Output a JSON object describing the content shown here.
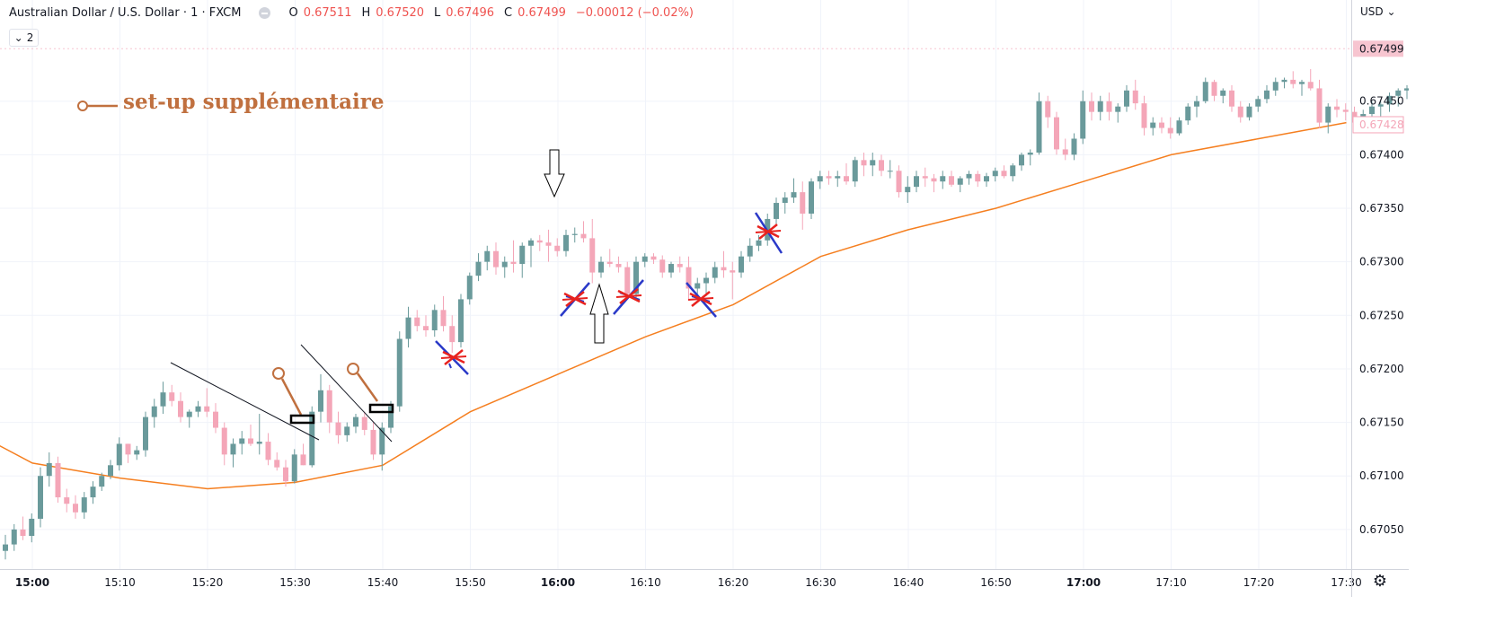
{
  "legend": {
    "symbol": "Australian Dollar / U.S. Dollar · 1 · FXCM",
    "o_label": "O",
    "o_value": "0.67511",
    "h_label": "H",
    "h_value": "0.67520",
    "l_label": "L",
    "l_value": "0.67496",
    "c_label": "C",
    "c_value": "0.67499",
    "change": "−0.00012 (−0.02%)"
  },
  "collapse_button": {
    "chevron": "⌄",
    "count": "2"
  },
  "currency": "USD",
  "currency_chevron": "⌄",
  "settings_icon": "gear-icon",
  "colors": {
    "up": "#6a9a9b",
    "down": "#f4a6b8",
    "ma": "#f57f20",
    "price_tag_bg": "#f7c5d0",
    "ma_tag": "#f4a6b8",
    "annotation": "#c0703f"
  },
  "annotation_text": "set-up supplémentaire",
  "chart_data": {
    "type": "candlestick",
    "title": "Australian Dollar / U.S. Dollar · 1 · FXCM",
    "interval_minutes": 1,
    "x_ticks": [
      "15:00",
      "15:10",
      "15:20",
      "15:30",
      "15:40",
      "15:50",
      "16:00",
      "16:10",
      "16:20",
      "16:30",
      "16:40",
      "16:50",
      "17:00",
      "17:10",
      "17:20",
      "17:30"
    ],
    "bold_x_ticks": [
      "15:00",
      "16:00",
      "17:00"
    ],
    "y_ticks": [
      "0.67050",
      "0.67100",
      "0.67150",
      "0.67200",
      "0.67250",
      "0.67300",
      "0.67350",
      "0.67400",
      "0.67450"
    ],
    "ylim": [
      0.67013,
      0.67516
    ],
    "last_price": "0.67499",
    "ma_value": "0.67428",
    "grid": true,
    "candles": [
      [
        0.6703,
        0.67045,
        0.67022,
        0.67036
      ],
      [
        0.67036,
        0.67055,
        0.6703,
        0.6705
      ],
      [
        0.6705,
        0.67062,
        0.6704,
        0.67044
      ],
      [
        0.67044,
        0.67065,
        0.67038,
        0.6706
      ],
      [
        0.6706,
        0.67108,
        0.67052,
        0.671
      ],
      [
        0.671,
        0.67122,
        0.6709,
        0.67112
      ],
      [
        0.67112,
        0.67118,
        0.67075,
        0.6708
      ],
      [
        0.6708,
        0.67088,
        0.67066,
        0.67074
      ],
      [
        0.67074,
        0.67082,
        0.6706,
        0.67066
      ],
      [
        0.67066,
        0.67085,
        0.6706,
        0.6708
      ],
      [
        0.6708,
        0.67095,
        0.67074,
        0.6709
      ],
      [
        0.6709,
        0.67103,
        0.67086,
        0.671
      ],
      [
        0.671,
        0.67115,
        0.67097,
        0.6711
      ],
      [
        0.6711,
        0.67136,
        0.67105,
        0.6713
      ],
      [
        0.6713,
        0.6713,
        0.67112,
        0.6712
      ],
      [
        0.6712,
        0.67128,
        0.67115,
        0.67124
      ],
      [
        0.67124,
        0.6716,
        0.67118,
        0.67155
      ],
      [
        0.67155,
        0.67172,
        0.67145,
        0.67165
      ],
      [
        0.67165,
        0.67188,
        0.67158,
        0.67178
      ],
      [
        0.67178,
        0.67185,
        0.67165,
        0.6717
      ],
      [
        0.6717,
        0.67178,
        0.6715,
        0.67155
      ],
      [
        0.67155,
        0.67162,
        0.67145,
        0.6716
      ],
      [
        0.6716,
        0.6717,
        0.67155,
        0.67165
      ],
      [
        0.67165,
        0.67182,
        0.67155,
        0.6716
      ],
      [
        0.6716,
        0.67168,
        0.6714,
        0.67145
      ],
      [
        0.67145,
        0.6715,
        0.6711,
        0.6712
      ],
      [
        0.6712,
        0.67135,
        0.67108,
        0.6713
      ],
      [
        0.6713,
        0.67142,
        0.6712,
        0.67135
      ],
      [
        0.67135,
        0.67148,
        0.67128,
        0.6713
      ],
      [
        0.6713,
        0.67158,
        0.6712,
        0.67132
      ],
      [
        0.67132,
        0.6714,
        0.6711,
        0.67115
      ],
      [
        0.67115,
        0.67122,
        0.67105,
        0.67108
      ],
      [
        0.67108,
        0.67115,
        0.6709,
        0.67095
      ],
      [
        0.67095,
        0.67125,
        0.67093,
        0.6712
      ],
      [
        0.6712,
        0.6713,
        0.6711,
        0.6711
      ],
      [
        0.6711,
        0.67165,
        0.67108,
        0.6716
      ],
      [
        0.6716,
        0.67195,
        0.6715,
        0.6718
      ],
      [
        0.6718,
        0.67185,
        0.6714,
        0.6715
      ],
      [
        0.6715,
        0.6716,
        0.6713,
        0.67138
      ],
      [
        0.67138,
        0.6715,
        0.67132,
        0.67146
      ],
      [
        0.67146,
        0.67158,
        0.6714,
        0.67155
      ],
      [
        0.67155,
        0.6716,
        0.67138,
        0.67143
      ],
      [
        0.67143,
        0.6715,
        0.67115,
        0.6712
      ],
      [
        0.6712,
        0.6715,
        0.67105,
        0.67145
      ],
      [
        0.67145,
        0.6717,
        0.6714,
        0.67165
      ],
      [
        0.67165,
        0.67235,
        0.6716,
        0.67228
      ],
      [
        0.67228,
        0.67258,
        0.6722,
        0.67248
      ],
      [
        0.67248,
        0.67255,
        0.67235,
        0.6724
      ],
      [
        0.6724,
        0.6725,
        0.6723,
        0.67236
      ],
      [
        0.67236,
        0.6726,
        0.6723,
        0.67255
      ],
      [
        0.67255,
        0.67268,
        0.67235,
        0.6724
      ],
      [
        0.6724,
        0.6725,
        0.67215,
        0.67225
      ],
      [
        0.67225,
        0.6727,
        0.6722,
        0.67265
      ],
      [
        0.67265,
        0.6729,
        0.6726,
        0.67287
      ],
      [
        0.67287,
        0.67308,
        0.67282,
        0.673
      ],
      [
        0.673,
        0.67315,
        0.67292,
        0.6731
      ],
      [
        0.6731,
        0.67318,
        0.67288,
        0.67295
      ],
      [
        0.67295,
        0.67305,
        0.67285,
        0.673
      ],
      [
        0.673,
        0.6732,
        0.6729,
        0.67298
      ],
      [
        0.67298,
        0.67318,
        0.67285,
        0.67315
      ],
      [
        0.67315,
        0.67322,
        0.67295,
        0.6732
      ],
      [
        0.6732,
        0.67325,
        0.6731,
        0.67318
      ],
      [
        0.67318,
        0.6733,
        0.673,
        0.67315
      ],
      [
        0.67315,
        0.67322,
        0.67305,
        0.6731
      ],
      [
        0.6731,
        0.6733,
        0.67305,
        0.67325
      ],
      [
        0.67325,
        0.67332,
        0.67318,
        0.67326
      ],
      [
        0.67326,
        0.67338,
        0.67318,
        0.67322
      ],
      [
        0.67322,
        0.6734,
        0.6728,
        0.6729
      ],
      [
        0.6729,
        0.67305,
        0.67285,
        0.673
      ],
      [
        0.673,
        0.67312,
        0.67295,
        0.67298
      ],
      [
        0.67298,
        0.67305,
        0.6729,
        0.67295
      ],
      [
        0.67295,
        0.673,
        0.67265,
        0.6727
      ],
      [
        0.6727,
        0.67305,
        0.67265,
        0.673
      ],
      [
        0.673,
        0.67308,
        0.67295,
        0.67305
      ],
      [
        0.67305,
        0.67308,
        0.67298,
        0.67302
      ],
      [
        0.67302,
        0.67306,
        0.67285,
        0.6729
      ],
      [
        0.6729,
        0.673,
        0.67285,
        0.67298
      ],
      [
        0.67298,
        0.67305,
        0.6729,
        0.67295
      ],
      [
        0.67295,
        0.67305,
        0.67265,
        0.67275
      ],
      [
        0.67275,
        0.67285,
        0.6727,
        0.6728
      ],
      [
        0.6728,
        0.6729,
        0.67268,
        0.67285
      ],
      [
        0.67285,
        0.673,
        0.6728,
        0.67295
      ],
      [
        0.67295,
        0.6731,
        0.67285,
        0.67292
      ],
      [
        0.67292,
        0.673,
        0.67265,
        0.6729
      ],
      [
        0.6729,
        0.6731,
        0.67285,
        0.67305
      ],
      [
        0.67305,
        0.67322,
        0.673,
        0.67315
      ],
      [
        0.67315,
        0.67325,
        0.6731,
        0.6732
      ],
      [
        0.6732,
        0.67345,
        0.67315,
        0.6734
      ],
      [
        0.6734,
        0.6736,
        0.67335,
        0.67355
      ],
      [
        0.67355,
        0.67365,
        0.67345,
        0.6736
      ],
      [
        0.6736,
        0.67378,
        0.67355,
        0.67365
      ],
      [
        0.67365,
        0.67375,
        0.6733,
        0.67345
      ],
      [
        0.67345,
        0.67378,
        0.6734,
        0.67375
      ],
      [
        0.67375,
        0.67385,
        0.67368,
        0.6738
      ],
      [
        0.6738,
        0.67385,
        0.67372,
        0.67378
      ],
      [
        0.67378,
        0.67385,
        0.6737,
        0.6738
      ],
      [
        0.6738,
        0.67392,
        0.67372,
        0.67375
      ],
      [
        0.67375,
        0.67398,
        0.6737,
        0.67395
      ],
      [
        0.67395,
        0.67402,
        0.6738,
        0.6739
      ],
      [
        0.6739,
        0.67402,
        0.6738,
        0.67395
      ],
      [
        0.67395,
        0.674,
        0.6738,
        0.67385
      ],
      [
        0.67385,
        0.67395,
        0.67378,
        0.67385
      ],
      [
        0.67385,
        0.6739,
        0.6736,
        0.67365
      ],
      [
        0.67365,
        0.6738,
        0.67355,
        0.6737
      ],
      [
        0.6737,
        0.67385,
        0.67365,
        0.6738
      ],
      [
        0.6738,
        0.67388,
        0.6737,
        0.67378
      ],
      [
        0.67378,
        0.67382,
        0.67365,
        0.67375
      ],
      [
        0.67375,
        0.67385,
        0.67368,
        0.6738
      ],
      [
        0.6738,
        0.67385,
        0.6737,
        0.67372
      ],
      [
        0.67372,
        0.6738,
        0.67365,
        0.67378
      ],
      [
        0.67378,
        0.67385,
        0.67372,
        0.67382
      ],
      [
        0.67382,
        0.67385,
        0.6737,
        0.67375
      ],
      [
        0.67375,
        0.67383,
        0.6737,
        0.6738
      ],
      [
        0.6738,
        0.67388,
        0.67375,
        0.67385
      ],
      [
        0.67385,
        0.6739,
        0.67378,
        0.6738
      ],
      [
        0.6738,
        0.67392,
        0.67375,
        0.6739
      ],
      [
        0.6739,
        0.67402,
        0.67385,
        0.674
      ],
      [
        0.674,
        0.67405,
        0.6739,
        0.67402
      ],
      [
        0.67402,
        0.67458,
        0.674,
        0.6745
      ],
      [
        0.6745,
        0.67455,
        0.67425,
        0.67435
      ],
      [
        0.67435,
        0.6744,
        0.674,
        0.67405
      ],
      [
        0.67405,
        0.67415,
        0.67395,
        0.674
      ],
      [
        0.674,
        0.6742,
        0.67395,
        0.67415
      ],
      [
        0.67415,
        0.6746,
        0.6741,
        0.6745
      ],
      [
        0.6745,
        0.67458,
        0.67432,
        0.6744
      ],
      [
        0.6744,
        0.67455,
        0.67432,
        0.6745
      ],
      [
        0.6745,
        0.67458,
        0.67432,
        0.6744
      ],
      [
        0.6744,
        0.67448,
        0.6743,
        0.67445
      ],
      [
        0.67445,
        0.67465,
        0.6744,
        0.6746
      ],
      [
        0.6746,
        0.6747,
        0.67442,
        0.67448
      ],
      [
        0.67448,
        0.67455,
        0.67418,
        0.67425
      ],
      [
        0.67425,
        0.67435,
        0.67418,
        0.6743
      ],
      [
        0.6743,
        0.67435,
        0.6742,
        0.67425
      ],
      [
        0.67425,
        0.67435,
        0.67415,
        0.6742
      ],
      [
        0.6742,
        0.67435,
        0.67418,
        0.67432
      ],
      [
        0.67432,
        0.67448,
        0.67428,
        0.67445
      ],
      [
        0.67445,
        0.67455,
        0.67435,
        0.6745
      ],
      [
        0.6745,
        0.67472,
        0.67448,
        0.67468
      ],
      [
        0.67468,
        0.6747,
        0.6745,
        0.67455
      ],
      [
        0.67455,
        0.67462,
        0.67448,
        0.6746
      ],
      [
        0.6746,
        0.67465,
        0.6744,
        0.67445
      ],
      [
        0.67445,
        0.6745,
        0.6743,
        0.67435
      ],
      [
        0.67435,
        0.67448,
        0.67432,
        0.67445
      ],
      [
        0.67445,
        0.67455,
        0.6744,
        0.67452
      ],
      [
        0.67452,
        0.67465,
        0.67448,
        0.6746
      ],
      [
        0.6746,
        0.67472,
        0.67455,
        0.67468
      ],
      [
        0.67468,
        0.67472,
        0.67462,
        0.6747
      ],
      [
        0.6747,
        0.67478,
        0.67462,
        0.67466
      ],
      [
        0.67466,
        0.6747,
        0.67455,
        0.67468
      ],
      [
        0.67468,
        0.6748,
        0.6746,
        0.67462
      ],
      [
        0.67462,
        0.6747,
        0.67425,
        0.6743
      ],
      [
        0.6743,
        0.67448,
        0.6742,
        0.67445
      ],
      [
        0.67445,
        0.67452,
        0.67435,
        0.67442
      ],
      [
        0.67442,
        0.67448,
        0.67432,
        0.6744
      ],
      [
        0.6744,
        0.67445,
        0.67425,
        0.6743
      ],
      [
        0.6743,
        0.67442,
        0.67425,
        0.67438
      ],
      [
        0.67438,
        0.6745,
        0.6743,
        0.67445
      ],
      [
        0.67445,
        0.6745,
        0.67435,
        0.67447
      ],
      [
        0.67447,
        0.67458,
        0.6744,
        0.67455
      ],
      [
        0.67455,
        0.67462,
        0.67445,
        0.6746
      ],
      [
        0.6746,
        0.67465,
        0.67452,
        0.67462
      ],
      [
        0.67462,
        0.67468,
        0.6745,
        0.67464
      ],
      [
        0.67464,
        0.67468,
        0.6744,
        0.6745
      ],
      [
        0.6745,
        0.67462,
        0.6744,
        0.67445
      ],
      [
        0.6751,
        0.6752,
        0.67496,
        0.67499
      ]
    ],
    "ma_line": [
      {
        "x": "14:54",
        "y": 0.67138
      },
      {
        "x": "15:00",
        "y": 0.67112
      },
      {
        "x": "15:10",
        "y": 0.67098
      },
      {
        "x": "15:20",
        "y": 0.67088
      },
      {
        "x": "15:30",
        "y": 0.67094
      },
      {
        "x": "15:40",
        "y": 0.6711
      },
      {
        "x": "15:50",
        "y": 0.6716
      },
      {
        "x": "16:00",
        "y": 0.67195
      },
      {
        "x": "16:10",
        "y": 0.6723
      },
      {
        "x": "16:20",
        "y": 0.6726
      },
      {
        "x": "16:30",
        "y": 0.67305
      },
      {
        "x": "16:40",
        "y": 0.6733
      },
      {
        "x": "16:50",
        "y": 0.6735
      },
      {
        "x": "17:00",
        "y": 0.67375
      },
      {
        "x": "17:10",
        "y": 0.674
      },
      {
        "x": "17:20",
        "y": 0.67415
      },
      {
        "x": "17:30",
        "y": 0.6743
      }
    ]
  }
}
